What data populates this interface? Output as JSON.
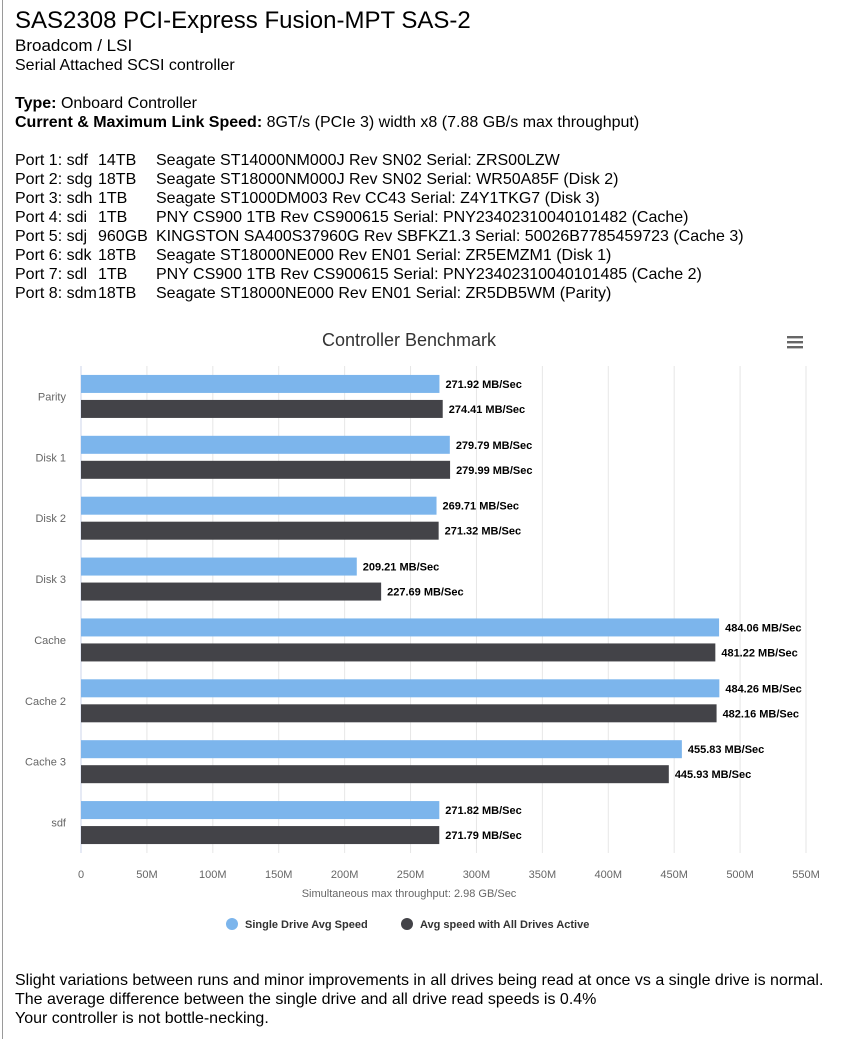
{
  "header": {
    "title": "SAS2308 PCI-Express Fusion-MPT SAS-2",
    "vendor": "Broadcom / LSI",
    "description": "Serial Attached SCSI controller"
  },
  "info": {
    "type_label": "Type:",
    "type_value": "Onboard Controller",
    "link_label": "Current & Maximum Link Speed:",
    "link_value": "8GT/s (PCIe 3) width x8 (7.88 GB/s max throughput)"
  },
  "ports": [
    {
      "port": "Port 1: sdf",
      "size": "14TB",
      "desc": "Seagate ST14000NM000J Rev SN02 Serial: ZRS00LZW"
    },
    {
      "port": "Port 2: sdg",
      "size": "18TB",
      "desc": "Seagate ST18000NM000J Rev SN02 Serial: WR50A85F (Disk 2)"
    },
    {
      "port": "Port 3: sdh",
      "size": "1TB",
      "desc": "Seagate ST1000DM003 Rev CC43 Serial: Z4Y1TKG7 (Disk 3)"
    },
    {
      "port": "Port 4: sdi",
      "size": "1TB",
      "desc": "PNY CS900 1TB Rev CS900615 Serial: PNY23402310040101482 (Cache)"
    },
    {
      "port": "Port 5: sdj",
      "size": "960GB",
      "desc": "KINGSTON SA400S37960G Rev SBFKZ1.3 Serial: 50026B7785459723 (Cache 3)"
    },
    {
      "port": "Port 6: sdk",
      "size": "18TB",
      "desc": "Seagate ST18000NE000 Rev EN01 Serial: ZR5EMZM1 (Disk 1)"
    },
    {
      "port": "Port 7: sdl",
      "size": "1TB",
      "desc": "PNY CS900 1TB Rev CS900615 Serial: PNY23402310040101485 (Cache 2)"
    },
    {
      "port": "Port 8: sdm",
      "size": "18TB",
      "desc": "Seagate ST18000NE000 Rev EN01 Serial: ZR5DB5WM (Parity)"
    }
  ],
  "chart_data": {
    "type": "bar",
    "orientation": "horizontal",
    "title": "Controller Benchmark",
    "xlabel": "Simultaneous max throughput: 2.98 GB/Sec",
    "categories": [
      "Parity",
      "Disk 1",
      "Disk 2",
      "Disk 3",
      "Cache",
      "Cache 2",
      "Cache 3",
      "sdf"
    ],
    "series": [
      {
        "name": "Single Drive Avg Speed",
        "color": "#7cb5ec",
        "values": [
          271.92,
          279.79,
          269.71,
          209.21,
          484.06,
          484.26,
          455.83,
          271.82
        ],
        "labels": [
          "271.92 MB/Sec",
          "279.79 MB/Sec",
          "269.71 MB/Sec",
          "209.21 MB/Sec",
          "484.06 MB/Sec",
          "484.26 MB/Sec",
          "455.83 MB/Sec",
          "271.82 MB/Sec"
        ]
      },
      {
        "name": "Avg speed with All Drives Active",
        "color": "#434348",
        "values": [
          274.41,
          279.99,
          271.32,
          227.69,
          481.22,
          482.16,
          445.93,
          271.79
        ],
        "labels": [
          "274.41 MB/Sec",
          "279.99 MB/Sec",
          "271.32 MB/Sec",
          "227.69 MB/Sec",
          "481.22 MB/Sec",
          "482.16 MB/Sec",
          "445.93 MB/Sec",
          "271.79 MB/Sec"
        ]
      }
    ],
    "xticks": [
      0,
      50,
      100,
      150,
      200,
      250,
      300,
      350,
      400,
      450,
      500,
      550
    ],
    "xtick_labels": [
      "0",
      "50M",
      "100M",
      "150M",
      "200M",
      "250M",
      "300M",
      "350M",
      "400M",
      "450M",
      "500M",
      "550M"
    ],
    "xlim": [
      0,
      550
    ],
    "grid": true,
    "legend_position": "bottom-center",
    "menu_icon": "hamburger-menu-icon"
  },
  "footer": {
    "line1": "Slight variations between runs and minor improvements in all drives being read at once vs a single drive is normal.",
    "line2": "The average difference between the single drive and all drive read speeds is 0.4%",
    "line3": "Your controller is not bottle-necking."
  }
}
